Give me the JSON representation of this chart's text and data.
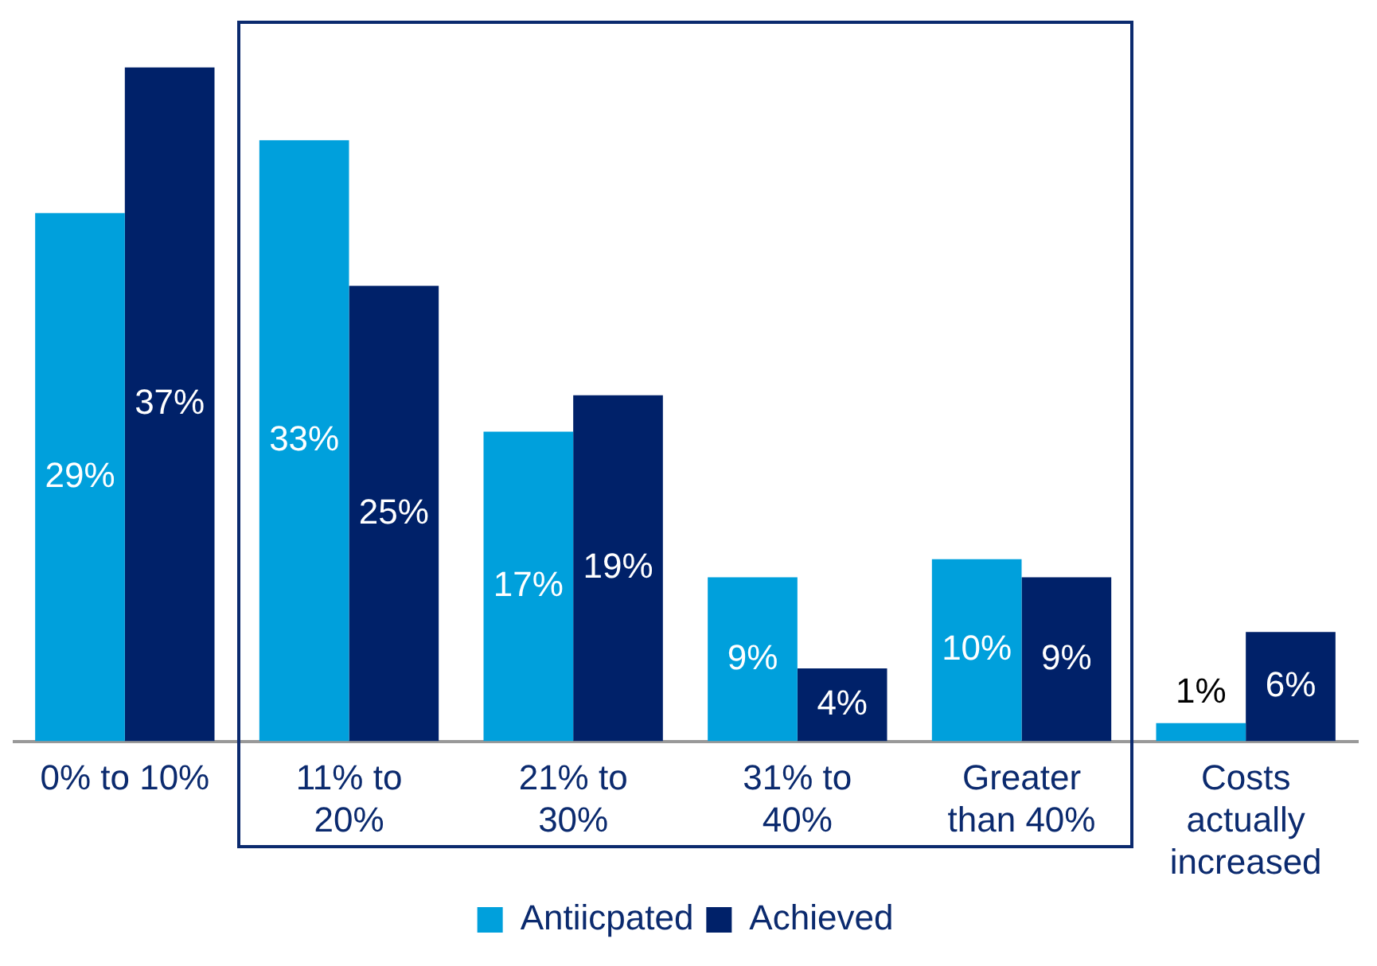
{
  "chart_data": {
    "type": "bar",
    "categories": [
      "0% to 10%",
      "11% to 20%",
      "21% to 30%",
      "31% to 40%",
      "Greater than 40%",
      "Costs actually increased"
    ],
    "series": [
      {
        "name": "Antiicpated",
        "color": "#00a0dc",
        "values": [
          29,
          33,
          17,
          9,
          10,
          1
        ],
        "value_labels": [
          "29%",
          "33%",
          "17%",
          "9%",
          "10%",
          "1%"
        ]
      },
      {
        "name": "Achieved",
        "color": "#002169",
        "values": [
          37,
          25,
          19,
          4,
          9,
          6
        ],
        "value_labels": [
          "37%",
          "25%",
          "19%",
          "4%",
          "9%",
          "6%"
        ]
      }
    ],
    "tick_labels": "x",
    "legend": "bottom",
    "grid": false
  }
}
